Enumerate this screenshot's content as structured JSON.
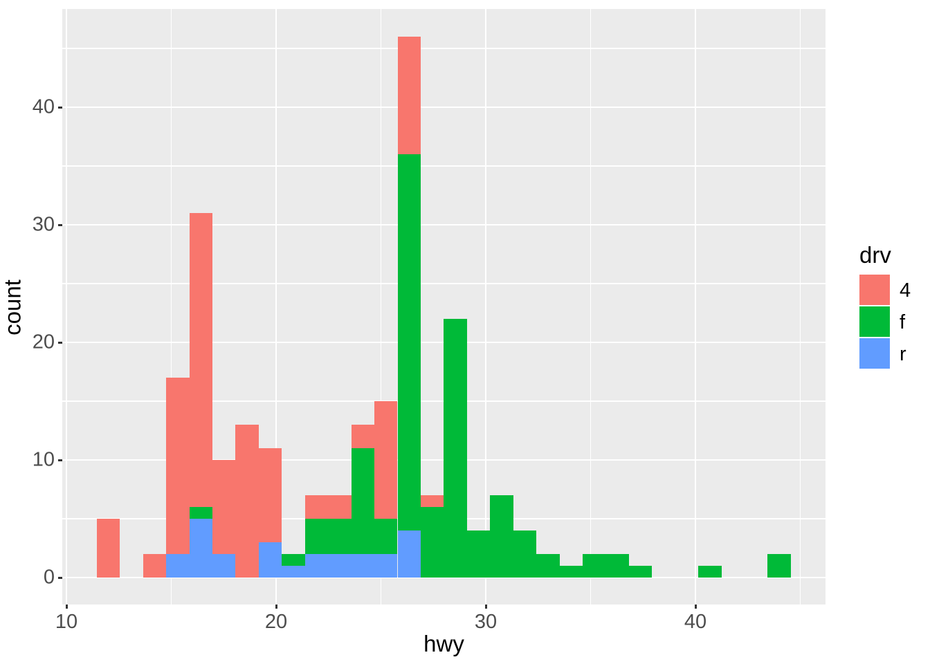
{
  "chart_data": {
    "type": "bar",
    "subtype": "stacked-histogram",
    "title": "",
    "xlabel": "hwy",
    "ylabel": "count",
    "x_axis": {
      "tick_values": [
        10,
        20,
        30,
        40
      ],
      "tick_labels": [
        "10",
        "20",
        "30",
        "40"
      ],
      "minor_gridlines": [
        15,
        25,
        35,
        45
      ],
      "range_shown": [
        9.8,
        46.2
      ]
    },
    "y_axis": {
      "tick_values": [
        0,
        10,
        20,
        30,
        40
      ],
      "tick_labels": [
        "0",
        "10",
        "20",
        "30",
        "40"
      ],
      "minor_gridlines": [
        5,
        15,
        25,
        35,
        45
      ],
      "range_shown": [
        -2.3,
        48.3
      ],
      "ylim_data": [
        0,
        46
      ]
    },
    "grid": "on",
    "panel_background": "#EBEBEB",
    "gridline_color": "#ffffff",
    "bin_start": 11.448,
    "bin_width": 1.1034,
    "stack_order_bottom_to_top": [
      "r",
      "f",
      "4"
    ],
    "series_colors": {
      "4": "#F8766D",
      "f": "#00BA38",
      "r": "#619CFF"
    },
    "bins": [
      {
        "center": 12.0,
        "r": 0,
        "f": 0,
        "4": 5
      },
      {
        "center": 13.1,
        "r": 0,
        "f": 0,
        "4": 0
      },
      {
        "center": 14.21,
        "r": 0,
        "f": 0,
        "4": 2
      },
      {
        "center": 15.31,
        "r": 2,
        "f": 0,
        "4": 15
      },
      {
        "center": 16.41,
        "r": 5,
        "f": 1,
        "4": 25
      },
      {
        "center": 17.52,
        "r": 2,
        "f": 0,
        "4": 8
      },
      {
        "center": 18.62,
        "r": 0,
        "f": 0,
        "4": 13
      },
      {
        "center": 19.72,
        "r": 3,
        "f": 0,
        "4": 8
      },
      {
        "center": 20.83,
        "r": 1,
        "f": 1,
        "4": 0
      },
      {
        "center": 21.93,
        "r": 2,
        "f": 3,
        "4": 2
      },
      {
        "center": 23.03,
        "r": 2,
        "f": 3,
        "4": 2
      },
      {
        "center": 24.14,
        "r": 2,
        "f": 9,
        "4": 2
      },
      {
        "center": 25.24,
        "r": 2,
        "f": 3,
        "4": 10
      },
      {
        "center": 26.34,
        "r": 4,
        "f": 32,
        "4": 10
      },
      {
        "center": 27.45,
        "r": 0,
        "f": 6,
        "4": 1
      },
      {
        "center": 28.55,
        "r": 0,
        "f": 22,
        "4": 0
      },
      {
        "center": 29.66,
        "r": 0,
        "f": 4,
        "4": 0
      },
      {
        "center": 30.76,
        "r": 0,
        "f": 7,
        "4": 0
      },
      {
        "center": 31.86,
        "r": 0,
        "f": 4,
        "4": 0
      },
      {
        "center": 32.97,
        "r": 0,
        "f": 2,
        "4": 0
      },
      {
        "center": 34.07,
        "r": 0,
        "f": 1,
        "4": 0
      },
      {
        "center": 35.17,
        "r": 0,
        "f": 2,
        "4": 0
      },
      {
        "center": 36.28,
        "r": 0,
        "f": 2,
        "4": 0
      },
      {
        "center": 37.38,
        "r": 0,
        "f": 1,
        "4": 0
      },
      {
        "center": 38.48,
        "r": 0,
        "f": 0,
        "4": 0
      },
      {
        "center": 39.59,
        "r": 0,
        "f": 0,
        "4": 0
      },
      {
        "center": 40.69,
        "r": 0,
        "f": 1,
        "4": 0
      },
      {
        "center": 41.79,
        "r": 0,
        "f": 0,
        "4": 0
      },
      {
        "center": 42.9,
        "r": 0,
        "f": 0,
        "4": 0
      },
      {
        "center": 44.0,
        "r": 0,
        "f": 2,
        "4": 0
      }
    ],
    "legend": {
      "title": "drv",
      "position": "right",
      "entries": [
        {
          "label": "4",
          "color": "#F8766D"
        },
        {
          "label": "f",
          "color": "#00BA38"
        },
        {
          "label": "r",
          "color": "#619CFF"
        }
      ]
    }
  }
}
